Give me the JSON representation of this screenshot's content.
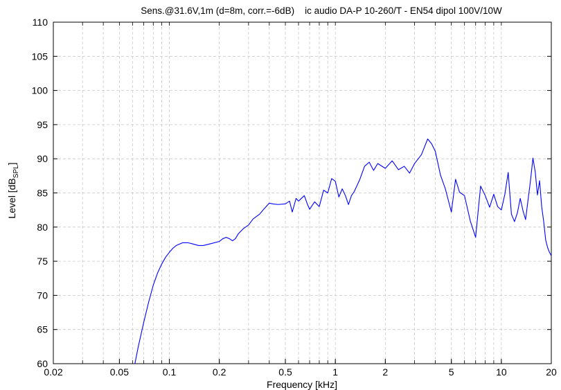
{
  "chart_data": {
    "type": "line",
    "title": "Sens.@31.6V,1m (d=8m, corr.=-6dB)    ic audio DA-P 10-260/T - EN54 dipol 100V/10W",
    "xlabel": "Frequency [kHz]",
    "ylabel": "Level [dB",
    "ylabel_sub": "SPL",
    "ylabel_end": "]",
    "x_scale": "log",
    "xlim": [
      0.02,
      20
    ],
    "ylim": [
      60,
      110
    ],
    "x_ticks": [
      0.02,
      0.05,
      0.1,
      0.2,
      0.5,
      1,
      2,
      5,
      10,
      20
    ],
    "x_tick_labels": [
      "0.02",
      "0.05",
      "0.1",
      "0.2",
      "0.5",
      "1",
      "2",
      "5",
      "10",
      "20"
    ],
    "y_ticks": [
      60,
      65,
      70,
      75,
      80,
      85,
      90,
      95,
      100,
      105,
      110
    ],
    "y_tick_labels": [
      "60",
      "65",
      "70",
      "75",
      "80",
      "85",
      "90",
      "95",
      "100",
      "105",
      "110"
    ],
    "grid": true,
    "line_color": "#0000ff",
    "series": [
      {
        "x": [
          0.062,
          0.065,
          0.07,
          0.075,
          0.08,
          0.085,
          0.09,
          0.095,
          0.1,
          0.105,
          0.11,
          0.12,
          0.13,
          0.14,
          0.15,
          0.16,
          0.18,
          0.2,
          0.21,
          0.22,
          0.23,
          0.24,
          0.25,
          0.26,
          0.28,
          0.3,
          0.32,
          0.35,
          0.37,
          0.4,
          0.42,
          0.45,
          0.5,
          0.53,
          0.55,
          0.58,
          0.6,
          0.65,
          0.68,
          0.7,
          0.75,
          0.8,
          0.85,
          0.9,
          0.95,
          1.0,
          1.05,
          1.1,
          1.15,
          1.2,
          1.25,
          1.3,
          1.4,
          1.5,
          1.6,
          1.7,
          1.8,
          2.0,
          2.2,
          2.4,
          2.6,
          2.8,
          3.0,
          3.3,
          3.6,
          3.8,
          4.0,
          4.3,
          4.6,
          5.0,
          5.3,
          5.6,
          6.0,
          6.5,
          7.0,
          7.5,
          8.0,
          8.5,
          9.0,
          9.5,
          10.0,
          10.5,
          11.0,
          11.5,
          12.0,
          12.5,
          13.0,
          13.5,
          14.0,
          15.0,
          15.5,
          16.0,
          16.5,
          17.0,
          17.5,
          18.0,
          18.5,
          19.0,
          19.5,
          20.0
        ],
        "y": [
          60.0,
          62.5,
          66.0,
          69.0,
          71.5,
          73.3,
          74.6,
          75.6,
          76.3,
          76.9,
          77.3,
          77.7,
          77.7,
          77.5,
          77.3,
          77.3,
          77.6,
          77.9,
          78.3,
          78.5,
          78.3,
          78.0,
          78.3,
          79.0,
          79.8,
          80.3,
          81.2,
          81.9,
          82.6,
          83.5,
          83.4,
          83.3,
          83.4,
          83.8,
          82.2,
          84.2,
          83.8,
          84.6,
          83.3,
          82.6,
          83.7,
          83.0,
          85.4,
          85.0,
          87.1,
          86.7,
          84.4,
          85.6,
          84.6,
          83.3,
          84.6,
          85.2,
          86.9,
          88.9,
          89.5,
          88.3,
          89.3,
          88.6,
          89.7,
          88.4,
          88.9,
          87.9,
          89.3,
          90.6,
          92.9,
          92.2,
          91.1,
          87.6,
          85.6,
          82.2,
          87.0,
          85.1,
          84.6,
          80.9,
          78.5,
          86.0,
          84.6,
          82.9,
          84.8,
          83.0,
          82.5,
          84.8,
          88.0,
          81.9,
          80.8,
          82.1,
          84.2,
          82.4,
          81.1,
          86.9,
          90.1,
          88.1,
          84.7,
          86.8,
          83.0,
          80.8,
          78.1,
          77.0,
          76.3,
          75.8
        ]
      }
    ]
  }
}
